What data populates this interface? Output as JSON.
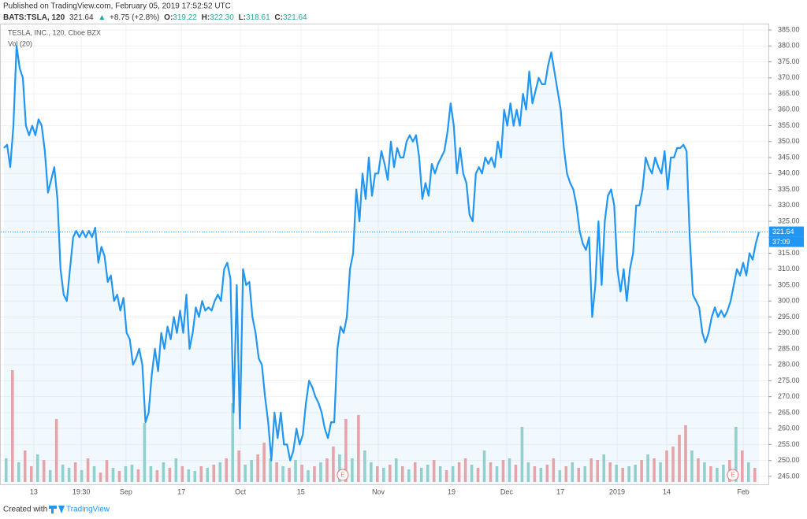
{
  "header": {
    "published": "Published on TradingView.com, February 05, 2019 17:52:52 UTC",
    "symbol": "BATS:TSLA, 120",
    "last": "321.64",
    "arrow": "▲",
    "change": "+8.75 (+2.8%)",
    "ohlc": [
      {
        "label": "O:",
        "value": "319.22"
      },
      {
        "label": "H:",
        "value": "322.30"
      },
      {
        "label": "L:",
        "value": "318.61"
      },
      {
        "label": "C:",
        "value": "321.64"
      }
    ]
  },
  "footer": {
    "created": "Created with",
    "brand": "TradingView"
  },
  "chart_data": {
    "type": "line",
    "legend_title": "TESLA, INC., 120, Cboe BZX",
    "volume_title": "Vol (20)",
    "xlim": [
      0,
      240
    ],
    "ylim": [
      242.5,
      387
    ],
    "grid": true,
    "xticks": [
      {
        "value": 9.5,
        "label": "13"
      },
      {
        "value": 24.6,
        "label": "19:30"
      },
      {
        "value": 38.8,
        "label": "Sep"
      },
      {
        "value": 56.4,
        "label": "17"
      },
      {
        "value": 75.2,
        "label": "Oct"
      },
      {
        "value": 94.4,
        "label": "15"
      },
      {
        "value": 119,
        "label": "Nov"
      },
      {
        "value": 142.3,
        "label": "19"
      },
      {
        "value": 159.8,
        "label": "Dec"
      },
      {
        "value": 176.9,
        "label": "17"
      },
      {
        "value": 194.9,
        "label": "2019"
      },
      {
        "value": 210.7,
        "label": "14"
      },
      {
        "value": 235,
        "label": "Feb"
      }
    ],
    "yticks": [
      {
        "value": 245,
        "label": "245.00"
      },
      {
        "value": 250,
        "label": "250.00"
      },
      {
        "value": 255,
        "label": "255.00"
      },
      {
        "value": 260,
        "label": "260.00"
      },
      {
        "value": 265,
        "label": "265.00"
      },
      {
        "value": 270,
        "label": "270.00"
      },
      {
        "value": 275,
        "label": "275.00"
      },
      {
        "value": 280,
        "label": "280.00"
      },
      {
        "value": 285,
        "label": "285.00"
      },
      {
        "value": 290,
        "label": "290.00"
      },
      {
        "value": 295,
        "label": "295.00"
      },
      {
        "value": 300,
        "label": "300.00"
      },
      {
        "value": 305,
        "label": "305.00"
      },
      {
        "value": 310,
        "label": "310.00"
      },
      {
        "value": 315,
        "label": "315.00"
      },
      {
        "value": 320,
        "label": "320.00"
      },
      {
        "value": 325,
        "label": "325.00"
      },
      {
        "value": 330,
        "label": "330.00"
      },
      {
        "value": 335,
        "label": "335.00"
      },
      {
        "value": 340,
        "label": "340.00"
      },
      {
        "value": 345,
        "label": "345.00"
      },
      {
        "value": 350,
        "label": "350.00"
      },
      {
        "value": 355,
        "label": "355.00"
      },
      {
        "value": 360,
        "label": "360.00"
      },
      {
        "value": 365,
        "label": "365.00"
      },
      {
        "value": 370,
        "label": "370.00"
      },
      {
        "value": 375,
        "label": "375.00"
      },
      {
        "value": 380,
        "label": "380.00"
      },
      {
        "value": 385,
        "label": "385.00"
      }
    ],
    "last_price": {
      "value": 321.64,
      "label": "321.64"
    },
    "countdown": "37:09",
    "series": [
      {
        "name": "TSLA",
        "color": "#2196f3",
        "values": [
          348,
          349,
          342,
          355,
          380,
          373,
          370,
          355,
          352,
          355,
          352,
          357,
          355,
          347,
          334,
          338,
          342,
          332,
          310,
          302,
          300,
          310,
          320,
          322,
          320,
          322,
          320,
          322,
          320,
          323,
          312,
          317,
          314,
          306,
          308,
          300,
          302,
          297,
          301,
          290,
          288,
          280,
          282,
          285,
          280,
          262,
          265,
          277,
          285,
          278,
          290,
          285,
          292,
          288,
          295,
          290,
          297,
          290,
          302,
          285,
          290,
          298,
          295,
          300,
          297,
          298,
          297,
          300,
          302,
          300,
          310,
          312,
          307,
          265,
          305,
          260,
          310,
          305,
          306,
          295,
          290,
          282,
          280,
          270,
          262,
          250,
          265,
          257,
          265,
          255,
          255,
          250,
          253,
          260,
          255,
          258,
          268,
          275,
          273,
          270,
          268,
          265,
          260,
          257,
          262,
          262,
          285,
          292,
          290,
          295,
          310,
          315,
          335,
          325,
          340,
          332,
          345,
          333,
          340,
          340,
          347,
          343,
          338,
          350,
          342,
          348,
          345,
          345,
          350,
          352,
          350,
          352,
          345,
          332,
          337,
          333,
          343,
          340,
          343,
          345,
          347,
          353,
          362,
          355,
          340,
          348,
          340,
          337,
          327,
          325,
          340,
          342,
          340,
          345,
          343,
          345,
          342,
          350,
          345,
          360,
          355,
          362,
          355,
          360,
          355,
          365,
          360,
          372,
          362,
          366,
          370,
          368,
          368,
          374,
          378,
          372,
          366,
          360,
          348,
          340,
          337,
          335,
          330,
          322,
          318,
          316,
          320,
          295,
          305,
          325,
          305,
          325,
          333,
          335,
          330,
          310,
          303,
          310,
          300,
          310,
          315,
          330,
          330,
          335,
          345,
          342,
          340,
          345,
          342,
          340,
          347,
          335,
          345,
          345,
          348,
          348,
          349,
          347,
          320,
          302,
          300,
          298,
          290,
          287,
          290,
          295,
          298,
          295,
          297,
          295,
          297,
          300,
          305,
          310,
          308,
          312,
          308,
          315,
          313,
          318,
          321.64
        ]
      }
    ],
    "volume": {
      "y2lim": [
        0,
        582
      ],
      "values": [
        30,
        142,
        25,
        40,
        20,
        35,
        28,
        15,
        80,
        22,
        18,
        25,
        15,
        30,
        20,
        12,
        28,
        18,
        14,
        20,
        22,
        16,
        75,
        20,
        15,
        25,
        18,
        30,
        20,
        16,
        14,
        20,
        18,
        22,
        25,
        30,
        100,
        40,
        22,
        28,
        35,
        50,
        30,
        25,
        20,
        18,
        28,
        22,
        15,
        20,
        25,
        30,
        45,
        35,
        80,
        30,
        85,
        40,
        25,
        20,
        18,
        22,
        30,
        20,
        16,
        25,
        18,
        22,
        28,
        20,
        15,
        20,
        25,
        30,
        22,
        18,
        40,
        25,
        20,
        28,
        30,
        22,
        70,
        25,
        20,
        18,
        22,
        30,
        15,
        20,
        25,
        18,
        20,
        30,
        28,
        35,
        25,
        22,
        18,
        20,
        22,
        28,
        35,
        30,
        25,
        40,
        45,
        60,
        72,
        40,
        30,
        25,
        20,
        18,
        22,
        28,
        70,
        40,
        25,
        18
      ],
      "colors": [
        "#9ad4cb",
        "#f3a4a4",
        "#9ad4cb",
        "#f3a4a4",
        "#f3a4a4",
        "#9ad4cb",
        "#f3a4a4",
        "#9ad4cb",
        "#f3a4a4",
        "#9ad4cb",
        "#9ad4cb",
        "#f3a4a4",
        "#9ad4cb",
        "#f3a4a4",
        "#9ad4cb",
        "#f3a4a4",
        "#f3a4a4",
        "#9ad4cb",
        "#f3a4a4",
        "#9ad4cb",
        "#9ad4cb",
        "#f3a4a4",
        "#9ad4cb",
        "#9ad4cb",
        "#f3a4a4",
        "#9ad4cb",
        "#f3a4a4",
        "#9ad4cb",
        "#f3a4a4",
        "#9ad4cb",
        "#9ad4cb",
        "#f3a4a4",
        "#9ad4cb",
        "#f3a4a4",
        "#9ad4cb",
        "#f3a4a4",
        "#9ad4cb",
        "#f3a4a4",
        "#9ad4cb",
        "#9ad4cb",
        "#f3a4a4",
        "#f3a4a4",
        "#9ad4cb",
        "#f3a4a4",
        "#9ad4cb",
        "#f3a4a4",
        "#9ad4cb",
        "#f3a4a4",
        "#9ad4cb",
        "#f3a4a4",
        "#9ad4cb",
        "#f3a4a4",
        "#f3a4a4",
        "#9ad4cb",
        "#f3a4a4",
        "#9ad4cb",
        "#f3a4a4",
        "#9ad4cb",
        "#9ad4cb",
        "#f3a4a4",
        "#9ad4cb",
        "#f3a4a4",
        "#9ad4cb",
        "#f3a4a4",
        "#9ad4cb",
        "#f3a4a4",
        "#9ad4cb",
        "#9ad4cb",
        "#f3a4a4",
        "#9ad4cb",
        "#f3a4a4",
        "#9ad4cb",
        "#f3a4a4",
        "#f3a4a4",
        "#9ad4cb",
        "#f3a4a4",
        "#9ad4cb",
        "#f3a4a4",
        "#9ad4cb",
        "#f3a4a4",
        "#9ad4cb",
        "#f3a4a4",
        "#9ad4cb",
        "#9ad4cb",
        "#f3a4a4",
        "#9ad4cb",
        "#f3a4a4",
        "#f3a4a4",
        "#9ad4cb",
        "#f3a4a4",
        "#9ad4cb",
        "#f3a4a4",
        "#9ad4cb",
        "#f3a4a4",
        "#f3a4a4",
        "#9ad4cb",
        "#f3a4a4",
        "#9ad4cb",
        "#f3a4a4",
        "#9ad4cb",
        "#9ad4cb",
        "#f3a4a4",
        "#9ad4cb",
        "#f3a4a4",
        "#9ad4cb",
        "#f3a4a4",
        "#f3a4a4",
        "#f3a4a4",
        "#f3a4a4",
        "#9ad4cb",
        "#f3a4a4",
        "#9ad4cb",
        "#f3a4a4",
        "#9ad4cb",
        "#9ad4cb",
        "#f3a4a4",
        "#9ad4cb",
        "#f3a4a4",
        "#9ad4cb",
        "#f3a4a4"
      ]
    },
    "events": [
      {
        "label": "E",
        "x": 107.7
      },
      {
        "label": "E",
        "x": 231.7
      }
    ]
  }
}
